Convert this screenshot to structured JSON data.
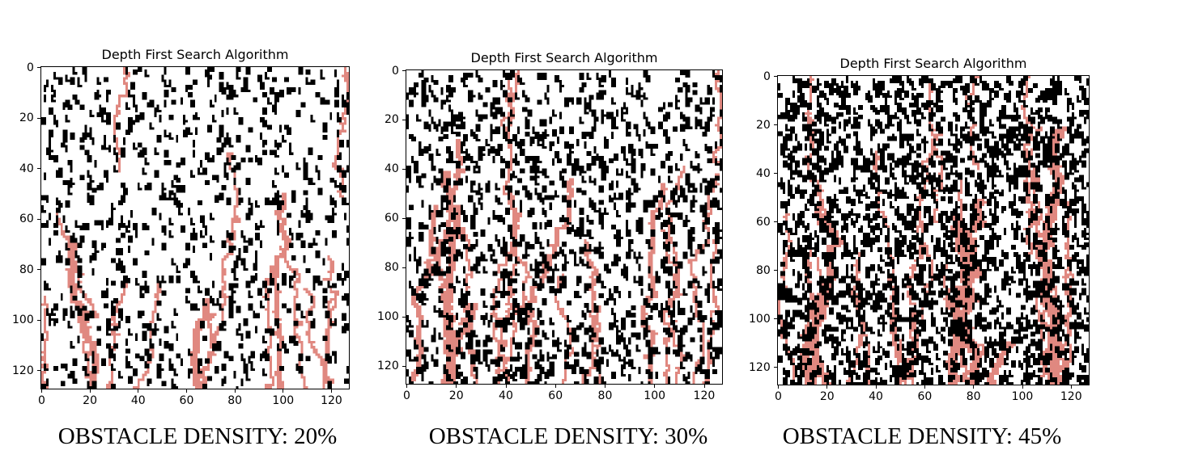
{
  "chart_data": [
    {
      "type": "heatmap",
      "title": "Depth First Search Algorithm",
      "grid_size": 128,
      "xlim": [
        0,
        127
      ],
      "ylim": [
        127,
        0
      ],
      "x_ticks": [
        0,
        20,
        40,
        60,
        80,
        100,
        120
      ],
      "y_ticks": [
        0,
        20,
        40,
        60,
        80,
        100,
        120
      ],
      "obstacle_density": 0.2,
      "caption": "OBSTACLE DENSITY: 20%",
      "colors": {
        "free": "#ffffff",
        "obstacle": "#000000",
        "path": "#e08880"
      }
    },
    {
      "type": "heatmap",
      "title": "Depth First Search Algorithm",
      "grid_size": 128,
      "xlim": [
        0,
        127
      ],
      "ylim": [
        127,
        0
      ],
      "x_ticks": [
        0,
        20,
        40,
        60,
        80,
        100,
        120
      ],
      "y_ticks": [
        0,
        20,
        40,
        60,
        80,
        100,
        120
      ],
      "obstacle_density": 0.3,
      "caption": "OBSTACLE DENSITY: 30%",
      "colors": {
        "free": "#ffffff",
        "obstacle": "#000000",
        "path": "#e08880"
      }
    },
    {
      "type": "heatmap",
      "title": "Depth First Search Algorithm",
      "grid_size": 128,
      "xlim": [
        0,
        127
      ],
      "ylim": [
        127,
        0
      ],
      "x_ticks": [
        0,
        20,
        40,
        60,
        80,
        100,
        120
      ],
      "y_ticks": [
        0,
        20,
        40,
        60,
        80,
        100,
        120
      ],
      "obstacle_density": 0.45,
      "caption": "OBSTACLE DENSITY: 45%",
      "colors": {
        "free": "#ffffff",
        "obstacle": "#000000",
        "path": "#e08880"
      }
    }
  ]
}
